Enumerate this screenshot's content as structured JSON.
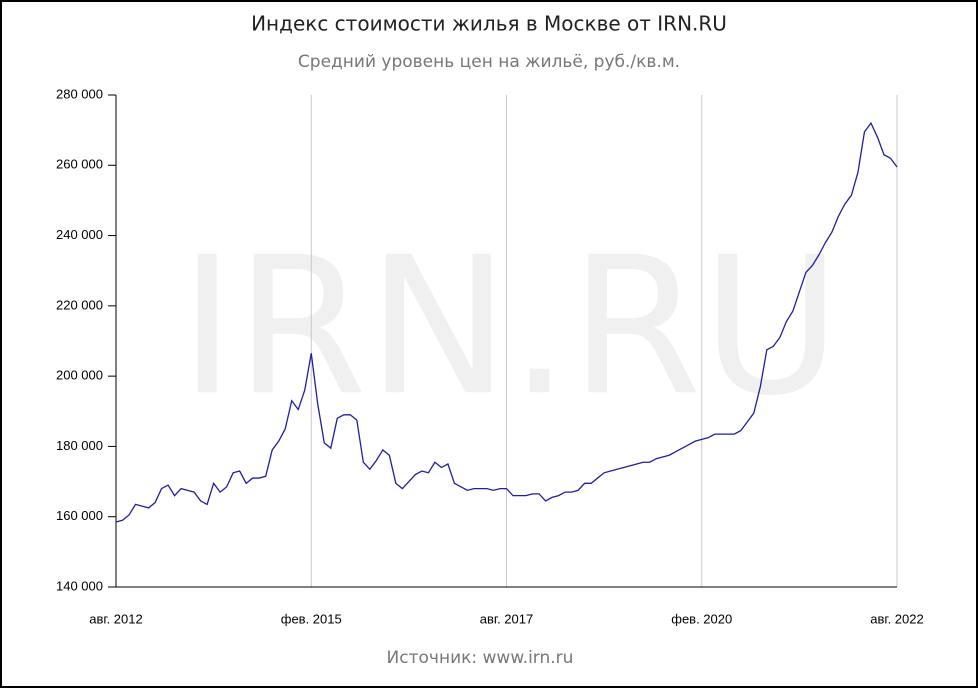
{
  "chart_data": {
    "type": "line",
    "title": "Индекс стоимости жилья в Москве от IRN.RU",
    "subtitle": "Средний уровень цен на жильё, руб./кв.м.",
    "watermark": "IRN.RU",
    "source": "Источник: www.irn.ru",
    "x": [
      "2012-08",
      "2012-09",
      "2012-10",
      "2012-11",
      "2012-12",
      "2013-01",
      "2013-02",
      "2013-03",
      "2013-04",
      "2013-05",
      "2013-06",
      "2013-07",
      "2013-08",
      "2013-09",
      "2013-10",
      "2013-11",
      "2013-12",
      "2014-01",
      "2014-02",
      "2014-03",
      "2014-04",
      "2014-05",
      "2014-06",
      "2014-07",
      "2014-08",
      "2014-09",
      "2014-10",
      "2014-11",
      "2014-12",
      "2015-01",
      "2015-02",
      "2015-03",
      "2015-04",
      "2015-05",
      "2015-06",
      "2015-07",
      "2015-08",
      "2015-09",
      "2015-10",
      "2015-11",
      "2015-12",
      "2016-01",
      "2016-02",
      "2016-03",
      "2016-04",
      "2016-05",
      "2016-06",
      "2016-07",
      "2016-08",
      "2016-09",
      "2016-10",
      "2016-11",
      "2016-12",
      "2017-01",
      "2017-02",
      "2017-03",
      "2017-04",
      "2017-05",
      "2017-06",
      "2017-07",
      "2017-08",
      "2017-09",
      "2017-10",
      "2017-11",
      "2017-12",
      "2018-01",
      "2018-02",
      "2018-03",
      "2018-04",
      "2018-05",
      "2018-06",
      "2018-07",
      "2018-08",
      "2018-09",
      "2018-10",
      "2018-11",
      "2018-12",
      "2019-01",
      "2019-02",
      "2019-03",
      "2019-04",
      "2019-05",
      "2019-06",
      "2019-07",
      "2019-08",
      "2019-09",
      "2019-10",
      "2019-11",
      "2019-12",
      "2020-01",
      "2020-02",
      "2020-03",
      "2020-04",
      "2020-05",
      "2020-06",
      "2020-07",
      "2020-08",
      "2020-09",
      "2020-10",
      "2020-11",
      "2020-12",
      "2021-01",
      "2021-02",
      "2021-03",
      "2021-04",
      "2021-05",
      "2021-06",
      "2021-07",
      "2021-08",
      "2021-09",
      "2021-10",
      "2021-11",
      "2021-12",
      "2022-01",
      "2022-02",
      "2022-03",
      "2022-04",
      "2022-05",
      "2022-06",
      "2022-07",
      "2022-08"
    ],
    "series": [
      {
        "color": "#1f1fa0",
        "values": [
          158500,
          159000,
          160500,
          163500,
          163000,
          162500,
          164000,
          168000,
          169000,
          166000,
          168000,
          167500,
          167000,
          164500,
          163500,
          169500,
          167000,
          168500,
          172500,
          173000,
          169500,
          171000,
          171000,
          171500,
          179000,
          181500,
          185000,
          193000,
          190500,
          196000,
          206500,
          192000,
          181000,
          179500,
          188000,
          189000,
          189000,
          187500,
          175500,
          173500,
          176000,
          179000,
          177500,
          169500,
          168000,
          170000,
          172000,
          173000,
          172500,
          175500,
          174000,
          175000,
          169500,
          168500,
          167500,
          168000,
          168000,
          168000,
          167500,
          168000,
          168000,
          166000,
          166000,
          166000,
          166500,
          166500,
          164500,
          165500,
          166000,
          167000,
          167000,
          167500,
          169500,
          169500,
          171000,
          172500,
          173000,
          173500,
          174000,
          174500,
          175000,
          175500,
          175500,
          176500,
          177000,
          177500,
          178500,
          179500,
          180500,
          181500,
          182000,
          182500,
          183500,
          183500,
          183500,
          183500,
          184500,
          187000,
          189500,
          197000,
          207500,
          208500,
          211000,
          215500,
          218500,
          224000,
          229500,
          231500,
          234500,
          238000,
          241000,
          245500,
          249000,
          251500,
          258000,
          269500,
          272000,
          268000,
          263000,
          262000,
          259500
        ]
      }
    ],
    "ylim": [
      140000,
      280000
    ],
    "yticks": [
      {
        "value": 140000,
        "label": "140 000"
      },
      {
        "value": 160000,
        "label": "160 000"
      },
      {
        "value": 180000,
        "label": "180 000"
      },
      {
        "value": 200000,
        "label": "200 000"
      },
      {
        "value": 220000,
        "label": "220 000"
      },
      {
        "value": 240000,
        "label": "240 000"
      },
      {
        "value": 260000,
        "label": "260 000"
      },
      {
        "value": 280000,
        "label": "280 000"
      }
    ],
    "xlim": [
      "2012-08",
      "2022-08"
    ],
    "xticks": [
      {
        "value": "2012-08",
        "label": "авг. 2012"
      },
      {
        "value": "2015-02",
        "label": "фев. 2015"
      },
      {
        "value": "2017-08",
        "label": "авг. 2017"
      },
      {
        "value": "2020-02",
        "label": "фев. 2020"
      },
      {
        "value": "2022-08",
        "label": "авг. 2022"
      }
    ],
    "grid": true
  }
}
